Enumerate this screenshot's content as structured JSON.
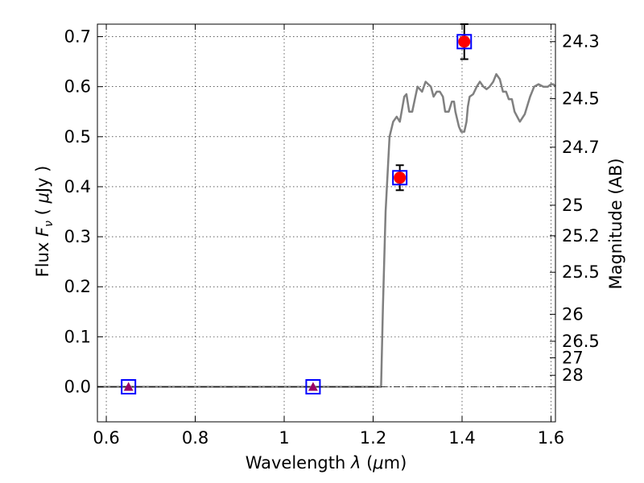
{
  "chart_data": {
    "type": "line",
    "x_axis": {
      "label_prefix": "Wavelength  ",
      "label_symbol": "λ",
      "label_unit_open": " (",
      "label_unit_symbol": "μ",
      "label_unit_rest": "m)",
      "range": [
        0.58,
        1.61
      ],
      "ticks": [
        0.6,
        0.8,
        1.0,
        1.2,
        1.4,
        1.6
      ],
      "tick_labels": [
        "0.6",
        "0.8",
        "1",
        "1.2",
        "1.4",
        "1.6"
      ]
    },
    "y_axis": {
      "label_prefix": "Flux  ",
      "label_symbol": "F",
      "label_subscript": "ν",
      "label_unit_open": "  ( ",
      "label_unit_symbol": "μ",
      "label_unit_rest": "Jy )",
      "range": [
        -0.07,
        0.725
      ],
      "ticks": [
        0.0,
        0.1,
        0.2,
        0.3,
        0.4,
        0.5,
        0.6,
        0.7
      ],
      "tick_labels": [
        "0.0",
        "0.1",
        "0.2",
        "0.3",
        "0.4",
        "0.5",
        "0.6",
        "0.7"
      ]
    },
    "y2_axis": {
      "label": "Magnitude (AB)",
      "ticks": [
        {
          "label": "24.3",
          "flux": 0.69
        },
        {
          "label": "24.5",
          "flux": 0.576
        },
        {
          "label": "24.7",
          "flux": 0.479
        },
        {
          "label": "25",
          "flux": 0.363
        },
        {
          "label": "25.2",
          "flux": 0.302
        },
        {
          "label": "25.5",
          "flux": 0.229
        },
        {
          "label": "26",
          "flux": 0.145
        },
        {
          "label": "26.5",
          "flux": 0.091
        },
        {
          "label": "27",
          "flux": 0.058
        },
        {
          "label": "28",
          "flux": 0.023
        }
      ]
    },
    "grid": true,
    "model_spectrum": {
      "color": "#808080",
      "x": [
        0.58,
        1.0,
        1.2,
        1.218,
        1.222,
        1.228,
        1.237,
        1.245,
        1.253,
        1.26,
        1.27,
        1.275,
        1.281,
        1.288,
        1.295,
        1.3,
        1.31,
        1.318,
        1.324,
        1.33,
        1.336,
        1.343,
        1.35,
        1.357,
        1.362,
        1.37,
        1.377,
        1.382,
        1.385,
        1.393,
        1.398,
        1.405,
        1.41,
        1.413,
        1.417,
        1.425,
        1.433,
        1.44,
        1.448,
        1.455,
        1.462,
        1.47,
        1.477,
        1.485,
        1.492,
        1.499,
        1.505,
        1.512,
        1.518,
        1.524,
        1.53,
        1.541,
        1.553,
        1.562,
        1.572,
        1.583,
        1.593,
        1.6,
        1.605,
        1.61
      ],
      "y": [
        0.0,
        0.0,
        0.0,
        0.0,
        0.16,
        0.35,
        0.5,
        0.53,
        0.54,
        0.53,
        0.58,
        0.585,
        0.55,
        0.55,
        0.58,
        0.6,
        0.59,
        0.61,
        0.605,
        0.6,
        0.58,
        0.59,
        0.59,
        0.58,
        0.55,
        0.55,
        0.57,
        0.57,
        0.55,
        0.52,
        0.51,
        0.51,
        0.53,
        0.56,
        0.58,
        0.585,
        0.6,
        0.61,
        0.6,
        0.595,
        0.6,
        0.61,
        0.625,
        0.615,
        0.59,
        0.59,
        0.575,
        0.575,
        0.55,
        0.54,
        0.53,
        0.545,
        0.58,
        0.6,
        0.605,
        0.6,
        0.6,
        0.605,
        0.605,
        0.6
      ]
    },
    "zero_line": {
      "color": "#000000",
      "style": "dashdot"
    },
    "observed_points": {
      "color": "#ff0000",
      "points": [
        {
          "x": 1.26,
          "y": 0.418,
          "err": 0.025
        },
        {
          "x": 1.405,
          "y": 0.69,
          "err": 0.035
        }
      ]
    },
    "model_boxes": {
      "edge_color": "#0000ff",
      "points": [
        {
          "x": 0.65,
          "y": 0.0
        },
        {
          "x": 1.065,
          "y": 0.0
        },
        {
          "x": 1.26,
          "y": 0.418
        },
        {
          "x": 1.405,
          "y": 0.69
        }
      ]
    },
    "upper_limits": {
      "color": "#990066",
      "points": [
        {
          "x": 0.65,
          "y": 0.0
        },
        {
          "x": 1.065,
          "y": 0.0
        }
      ]
    }
  }
}
